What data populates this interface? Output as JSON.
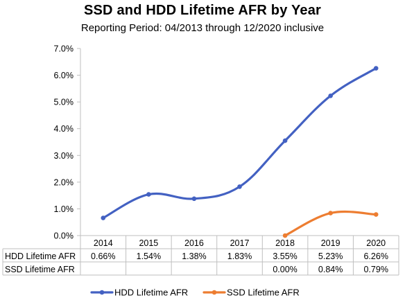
{
  "chart_data": {
    "type": "line",
    "title": "SSD and HDD Lifetime AFR by Year",
    "subtitle": "Reporting Period: 04/2013 through 12/2020 inclusive",
    "categories": [
      "2014",
      "2015",
      "2016",
      "2017",
      "2018",
      "2019",
      "2020"
    ],
    "y_ticks": [
      "0.0%",
      "1.0%",
      "2.0%",
      "3.0%",
      "4.0%",
      "5.0%",
      "6.0%",
      "7.0%"
    ],
    "ylim": [
      0,
      7
    ],
    "y_unit": "%",
    "grid": false,
    "legend_position": "bottom",
    "series": [
      {
        "name": "HDD Lifetime AFR",
        "color": "#4361c2",
        "values": [
          0.66,
          1.54,
          1.38,
          1.83,
          3.55,
          5.23,
          6.26
        ],
        "labels": [
          "0.66%",
          "1.54%",
          "1.38%",
          "1.83%",
          "3.55%",
          "5.23%",
          "6.26%"
        ]
      },
      {
        "name": "SSD Lifetime AFR",
        "color": "#ed7d31",
        "values": [
          null,
          null,
          null,
          null,
          0.0,
          0.84,
          0.79
        ],
        "labels": [
          "",
          "",
          "",
          "",
          "0.00%",
          "0.84%",
          "0.79%"
        ]
      }
    ]
  }
}
